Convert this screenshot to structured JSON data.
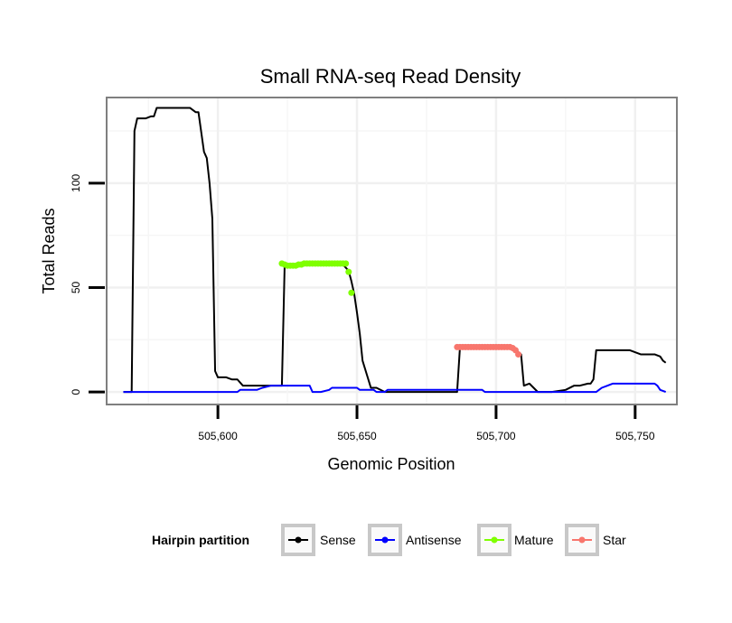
{
  "chart_data": {
    "type": "line",
    "title": "Small RNA-seq Read Density",
    "xlabel": "Genomic Position",
    "ylabel": "Total Reads",
    "xlim": [
      505560,
      505765
    ],
    "ylim": [
      -6,
      141
    ],
    "x_ticks": [
      505600,
      505650,
      505700,
      505750
    ],
    "x_tick_labels": [
      "505,600",
      "505,650",
      "505,700",
      "505,750"
    ],
    "y_ticks": [
      0,
      50,
      100
    ],
    "y_tick_labels": [
      "0",
      "50",
      "100"
    ],
    "grid": true,
    "legend": {
      "title": "Hairpin partition",
      "placement": "bottom",
      "entries": [
        "Sense",
        "Antisense",
        "Mature",
        "Star"
      ]
    },
    "series": [
      {
        "name": "Sense",
        "color": "#000000",
        "x": [
          505566,
          505569,
          505570,
          505571,
          505572,
          505574,
          505576,
          505577,
          505578,
          505580,
          505583,
          505586,
          505590,
          505592,
          505593,
          505595,
          505596,
          505597,
          505598,
          505599,
          505600,
          505602,
          505603,
          505605,
          505607,
          505609,
          505615,
          505619,
          505623,
          505624,
          505625,
          505627,
          505630,
          505635,
          505640,
          505645,
          505647,
          505648,
          505649,
          505650,
          505651,
          505652,
          505655,
          505657,
          505660,
          505665,
          505670,
          505675,
          505680,
          505685,
          505686,
          505687,
          505690,
          505695,
          505700,
          505705,
          505707,
          505708,
          505709,
          505710,
          505712,
          505715,
          505720,
          505725,
          505728,
          505730,
          505733,
          505734,
          505735,
          505736,
          505738,
          505745,
          505748,
          505752,
          505755,
          505757,
          505759,
          505760,
          505761
        ],
        "y": [
          0,
          0,
          125,
          131,
          131,
          131,
          132,
          132,
          136,
          136,
          136,
          136,
          136,
          134,
          134,
          115,
          112,
          100,
          83,
          10,
          7,
          7,
          7,
          6,
          6,
          3,
          3,
          3,
          3,
          61,
          61,
          60,
          61,
          61,
          61,
          61,
          58,
          53,
          47,
          38,
          28,
          15,
          2,
          2,
          0,
          0,
          0,
          0,
          0,
          0,
          0,
          21,
          21,
          21,
          21,
          21,
          21,
          19,
          18,
          3,
          4,
          0,
          0,
          1,
          3,
          3,
          4,
          4,
          6,
          20,
          20,
          20,
          20,
          18,
          18,
          18,
          17,
          15,
          14
        ]
      },
      {
        "name": "Antisense",
        "color": "#0000FF",
        "x": [
          505566,
          505570,
          505600,
          505607,
          505608,
          505614,
          505616,
          505619,
          505625,
          505630,
          505633,
          505634,
          505637,
          505640,
          505641,
          505650,
          505651,
          505656,
          505657,
          505660,
          505661,
          505685,
          505686,
          505695,
          505696,
          505726,
          505727,
          505736,
          505737,
          505738,
          505740,
          505742,
          505755,
          505757,
          505758,
          505759,
          505761
        ],
        "y": [
          0,
          0,
          0,
          0,
          1,
          1,
          2,
          3,
          3,
          3,
          3,
          0,
          0,
          1,
          2,
          2,
          1,
          1,
          0,
          0,
          1,
          1,
          1,
          1,
          0,
          0,
          0,
          0,
          1,
          2,
          3,
          4,
          4,
          4,
          3,
          1,
          0
        ]
      },
      {
        "name": "Mature",
        "color": "#7FFF00",
        "points": [
          [
            505623,
            61.5
          ],
          [
            505624,
            61
          ],
          [
            505625,
            60.5
          ],
          [
            505626,
            60.5
          ],
          [
            505627,
            60.5
          ],
          [
            505628,
            60.5
          ],
          [
            505629,
            61
          ],
          [
            505630,
            61
          ],
          [
            505631,
            61.5
          ],
          [
            505632,
            61.5
          ],
          [
            505633,
            61.5
          ],
          [
            505634,
            61.5
          ],
          [
            505635,
            61.5
          ],
          [
            505636,
            61.5
          ],
          [
            505637,
            61.5
          ],
          [
            505638,
            61.5
          ],
          [
            505639,
            61.5
          ],
          [
            505640,
            61.5
          ],
          [
            505641,
            61.5
          ],
          [
            505642,
            61.5
          ],
          [
            505643,
            61.5
          ],
          [
            505644,
            61.5
          ],
          [
            505645,
            61.5
          ],
          [
            505646,
            61.5
          ],
          [
            505647,
            57.5
          ],
          [
            505648,
            47.5
          ]
        ]
      },
      {
        "name": "Star",
        "color": "#F8766D",
        "points": [
          [
            505686,
            21.5
          ],
          [
            505687,
            21.5
          ],
          [
            505688,
            21.5
          ],
          [
            505689,
            21.5
          ],
          [
            505690,
            21.5
          ],
          [
            505691,
            21.5
          ],
          [
            505692,
            21.5
          ],
          [
            505693,
            21.5
          ],
          [
            505694,
            21.5
          ],
          [
            505695,
            21.5
          ],
          [
            505696,
            21.5
          ],
          [
            505697,
            21.5
          ],
          [
            505698,
            21.5
          ],
          [
            505699,
            21.5
          ],
          [
            505700,
            21.5
          ],
          [
            505701,
            21.5
          ],
          [
            505702,
            21.5
          ],
          [
            505703,
            21.5
          ],
          [
            505704,
            21.5
          ],
          [
            505705,
            21.5
          ],
          [
            505706,
            21
          ],
          [
            505707,
            20
          ],
          [
            505708,
            18
          ]
        ]
      }
    ]
  }
}
